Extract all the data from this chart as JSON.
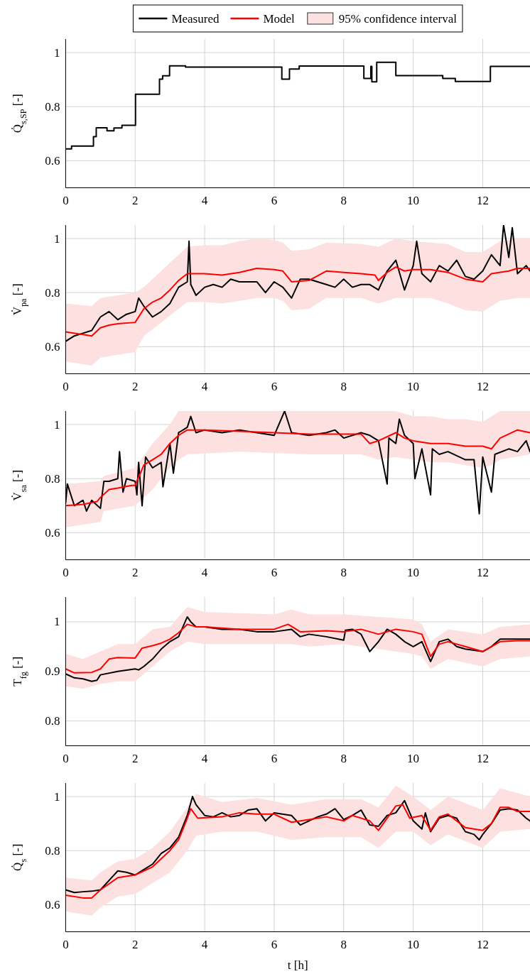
{
  "chart_data": [
    {
      "type": "step",
      "ylabel": "Q̇$_{s,SP}$ [-]",
      "xlim": [
        0,
        13.36
      ],
      "xticks": [
        0,
        2,
        4,
        6,
        8,
        10,
        12
      ],
      "ylim": [
        0.5,
        1.05
      ],
      "yticks": [
        0.6,
        0.8,
        1
      ],
      "grid": true,
      "series": [
        {
          "color": "#000000",
          "x": [
            0,
            0.17,
            0.8,
            0.88,
            1.19,
            1.39,
            1.62,
            2.01,
            2.7,
            2.79,
            2.99,
            3.45,
            6.22,
            6.44,
            6.72,
            8.58,
            8.78,
            8.81,
            8.95,
            9.5,
            10.85,
            11.21,
            12.22,
            13.36
          ],
          "values": [
            0.644,
            0.654,
            0.689,
            0.722,
            0.711,
            0.721,
            0.731,
            0.846,
            0.902,
            0.914,
            0.951,
            0.946,
            0.902,
            0.939,
            0.95,
            0.904,
            0.949,
            0.892,
            0.964,
            0.915,
            0.904,
            0.893,
            0.949,
            0.949
          ]
        }
      ]
    },
    {
      "type": "line",
      "ylabel": "V̇$_{pa}$ [-]",
      "xlim": [
        0,
        13.36
      ],
      "xticks": [
        0,
        2,
        4,
        6,
        8,
        10,
        12
      ],
      "ylim": [
        0.5,
        1.05
      ],
      "yticks": [
        0.6,
        0.8,
        1
      ],
      "grid": true,
      "legend": "top",
      "series": [
        {
          "type": "area",
          "name": "95% confidence interval",
          "color": "#fde0e0",
          "x": [
            0,
            0.75,
            1,
            1.5,
            2,
            2.25,
            2.5,
            2.75,
            3,
            3.25,
            3.5,
            4,
            4.5,
            5,
            5.5,
            6,
            6.25,
            6.5,
            7,
            7.5,
            8.5,
            9,
            9.5,
            10,
            10.5,
            11,
            11.5,
            12,
            12.5,
            13,
            13.36
          ],
          "values": [
            null,
            null,
            null,
            null,
            null,
            null,
            null,
            null,
            null,
            null,
            null,
            null,
            null,
            null,
            null,
            null,
            null,
            null,
            null,
            null,
            null,
            null,
            null,
            null,
            null,
            null,
            null,
            null,
            null,
            null,
            null
          ],
          "lower": [
            0.545,
            0.53,
            0.56,
            0.57,
            0.58,
            0.64,
            0.665,
            0.69,
            0.715,
            0.74,
            0.765,
            0.765,
            0.76,
            0.77,
            0.78,
            0.78,
            0.77,
            0.735,
            0.74,
            0.78,
            0.78,
            0.76,
            0.78,
            0.78,
            0.78,
            0.76,
            0.735,
            0.73,
            0.77,
            0.78,
            0.78
          ],
          "upper": [
            0.76,
            0.75,
            0.78,
            0.79,
            0.8,
            0.82,
            0.85,
            0.88,
            0.91,
            0.94,
            0.97,
            0.975,
            0.975,
            0.99,
            1.0,
            0.995,
            0.985,
            0.955,
            0.96,
            0.985,
            0.98,
            0.97,
            1.0,
            0.99,
            0.985,
            0.98,
            0.95,
            0.95,
            0.99,
            1.0,
            1.0
          ]
        },
        {
          "name": "Measured",
          "color": "#000000",
          "x": [
            0,
            0.25,
            0.5,
            0.75,
            1,
            1.25,
            1.5,
            1.75,
            2,
            2.1,
            2.25,
            2.5,
            2.75,
            3,
            3.25,
            3.5,
            3.55,
            3.6,
            3.75,
            4,
            4.25,
            4.5,
            4.75,
            5,
            5.25,
            5.5,
            5.75,
            6,
            6.25,
            6.5,
            6.75,
            7,
            7.25,
            7.5,
            7.75,
            8,
            8.25,
            8.5,
            8.75,
            9,
            9.25,
            9.5,
            9.75,
            10,
            10.1,
            10.25,
            10.5,
            10.75,
            11,
            11.25,
            11.5,
            11.75,
            12,
            12.25,
            12.5,
            12.6,
            12.75,
            12.85,
            13,
            13.25,
            13.36
          ],
          "values": [
            0.62,
            0.64,
            0.65,
            0.66,
            0.71,
            0.73,
            0.7,
            0.72,
            0.73,
            0.78,
            0.75,
            0.71,
            0.73,
            0.76,
            0.82,
            0.84,
            0.99,
            0.83,
            0.79,
            0.82,
            0.83,
            0.82,
            0.85,
            0.84,
            0.84,
            0.84,
            0.8,
            0.84,
            0.82,
            0.78,
            0.85,
            0.85,
            0.84,
            0.83,
            0.82,
            0.85,
            0.82,
            0.83,
            0.83,
            0.81,
            0.88,
            0.92,
            0.81,
            0.9,
            0.99,
            0.87,
            0.84,
            0.9,
            0.88,
            0.92,
            0.86,
            0.85,
            0.88,
            0.94,
            0.9,
            1.05,
            0.93,
            1.04,
            0.87,
            0.9,
            0.88
          ]
        },
        {
          "name": "Model",
          "color": "#ff0000",
          "x": [
            0,
            0.5,
            0.75,
            1,
            1.25,
            1.5,
            2,
            2.25,
            2.5,
            2.75,
            3,
            3.25,
            3.5,
            4,
            4.5,
            5,
            5.5,
            6,
            6.25,
            6.5,
            7,
            7.5,
            8,
            8.5,
            8.9,
            9,
            9.25,
            9.5,
            9.75,
            10,
            10.5,
            11,
            11.5,
            12,
            12.25,
            12.75,
            13,
            13.36
          ],
          "values": [
            0.655,
            0.645,
            0.64,
            0.67,
            0.68,
            0.685,
            0.69,
            0.74,
            0.765,
            0.78,
            0.81,
            0.845,
            0.87,
            0.87,
            0.865,
            0.875,
            0.89,
            0.885,
            0.88,
            0.84,
            0.845,
            0.88,
            0.875,
            0.87,
            0.865,
            0.845,
            0.875,
            0.895,
            0.88,
            0.885,
            0.885,
            0.875,
            0.85,
            0.84,
            0.87,
            0.88,
            0.89,
            0.89
          ]
        }
      ]
    },
    {
      "type": "line",
      "ylabel": "V̇$_{sa}$ [-]",
      "xlim": [
        0,
        13.36
      ],
      "xticks": [
        0,
        2,
        4,
        6,
        8,
        10,
        12
      ],
      "ylim": [
        0.5,
        1.05
      ],
      "yticks": [
        0.6,
        0.8,
        1
      ],
      "grid": true,
      "series": [
        {
          "type": "area",
          "color": "#fde0e0",
          "x": [
            0,
            1,
            1.1,
            2,
            2.5,
            3,
            3.25,
            3.5,
            5,
            7,
            8.5,
            9,
            9.5,
            10,
            10.5,
            11,
            11.5,
            12,
            12.25,
            12.5,
            13.36
          ],
          "values": [
            null,
            null,
            null,
            null,
            null,
            null,
            null,
            null,
            null,
            null,
            null,
            null,
            null,
            null,
            null,
            null,
            null,
            null,
            null,
            null,
            null
          ],
          "lower": [
            0.62,
            0.64,
            0.68,
            0.7,
            0.76,
            0.84,
            0.87,
            0.89,
            0.9,
            0.89,
            0.89,
            0.87,
            0.88,
            0.87,
            0.86,
            0.86,
            0.85,
            0.84,
            0.85,
            0.87,
            0.89
          ],
          "upper": [
            0.78,
            0.79,
            0.81,
            0.84,
            0.93,
            1.0,
            1.05,
            1.05,
            1.05,
            1.05,
            1.05,
            1.05,
            1.05,
            1.03,
            1.03,
            1.02,
            1.02,
            1.01,
            1.03,
            1.05,
            1.05
          ]
        },
        {
          "color": "#000000",
          "x": [
            0,
            0.05,
            0.25,
            0.5,
            0.6,
            0.75,
            1,
            1.1,
            1.25,
            1.5,
            1.55,
            1.65,
            1.75,
            2,
            2.05,
            2.1,
            2.2,
            2.3,
            2.5,
            2.75,
            2.8,
            3,
            3.1,
            3.25,
            3.5,
            3.6,
            3.75,
            4,
            4.5,
            5,
            5.5,
            6,
            6.3,
            6.5,
            7,
            7.5,
            7.75,
            8,
            8.5,
            8.75,
            9,
            9.25,
            9.3,
            9.5,
            9.6,
            9.75,
            10,
            10.05,
            10.25,
            10.5,
            10.55,
            10.75,
            11,
            11.5,
            11.75,
            11.9,
            12,
            12.25,
            12.35,
            12.75,
            13,
            13.25,
            13.36
          ],
          "values": [
            0.71,
            0.78,
            0.7,
            0.72,
            0.68,
            0.72,
            0.69,
            0.79,
            0.79,
            0.8,
            0.9,
            0.75,
            0.8,
            0.79,
            0.74,
            0.86,
            0.7,
            0.88,
            0.84,
            0.86,
            0.77,
            0.93,
            0.82,
            0.97,
            0.99,
            1.03,
            0.97,
            0.98,
            0.97,
            0.98,
            0.97,
            0.96,
            1.05,
            0.97,
            0.96,
            0.97,
            0.98,
            0.95,
            0.97,
            0.96,
            0.94,
            0.78,
            0.95,
            0.93,
            1.02,
            0.96,
            0.93,
            0.8,
            0.91,
            0.74,
            0.91,
            0.89,
            0.9,
            0.87,
            0.87,
            0.67,
            0.88,
            0.75,
            0.89,
            0.91,
            0.9,
            0.94,
            0.9
          ]
        },
        {
          "color": "#ff0000",
          "x": [
            0,
            0.5,
            0.9,
            1,
            1.25,
            1.5,
            1.9,
            2,
            2.25,
            2.5,
            2.75,
            3,
            3.25,
            3.5,
            4,
            5,
            6,
            7,
            8,
            8.5,
            8.75,
            9,
            9.5,
            9.75,
            10,
            10.5,
            11,
            11.5,
            12,
            12.25,
            12.5,
            13,
            13.36
          ],
          "values": [
            0.7,
            0.705,
            0.715,
            0.73,
            0.76,
            0.765,
            0.775,
            0.775,
            0.85,
            0.87,
            0.89,
            0.93,
            0.96,
            0.98,
            0.98,
            0.975,
            0.97,
            0.965,
            0.965,
            0.965,
            0.93,
            0.94,
            0.97,
            0.95,
            0.94,
            0.93,
            0.93,
            0.92,
            0.92,
            0.91,
            0.95,
            0.98,
            0.97
          ]
        }
      ]
    },
    {
      "type": "line",
      "ylabel": "T$_{fg}$ [-]",
      "xlim": [
        0,
        13.36
      ],
      "xticks": [
        0,
        2,
        4,
        6,
        8,
        10,
        12
      ],
      "ylim": [
        0.75,
        1.05
      ],
      "yticks": [
        0.8,
        0.9,
        1
      ],
      "grid": true,
      "series": [
        {
          "type": "area",
          "color": "#fde0e0",
          "x": [
            0,
            0.5,
            1,
            1.5,
            2,
            2.5,
            3,
            3.5,
            4,
            6,
            6.5,
            7,
            8,
            9,
            10,
            10.25,
            10.5,
            11,
            12,
            12.5,
            13.36
          ],
          "values": [
            null,
            null,
            null,
            null,
            null,
            null,
            null,
            null,
            null,
            null,
            null,
            null,
            null,
            null,
            null,
            null,
            null,
            null,
            null,
            null,
            null
          ],
          "lower": [
            0.87,
            0.865,
            0.875,
            0.88,
            0.88,
            0.91,
            0.94,
            0.96,
            0.955,
            0.955,
            0.955,
            0.95,
            0.955,
            0.945,
            0.935,
            0.93,
            0.905,
            0.925,
            0.91,
            0.925,
            0.93
          ],
          "upper": [
            0.935,
            0.925,
            0.94,
            0.955,
            0.955,
            0.985,
            0.99,
            1.03,
            1.02,
            1.015,
            1.025,
            1.015,
            1.015,
            1.01,
            1.005,
            0.995,
            0.96,
            0.985,
            0.975,
            0.99,
            0.995
          ]
        },
        {
          "color": "#000000",
          "x": [
            0,
            0.25,
            0.5,
            0.75,
            0.9,
            1,
            1.5,
            2,
            2.1,
            2.25,
            2.5,
            2.75,
            3,
            3.25,
            3.5,
            3.6,
            3.75,
            4,
            4.5,
            5,
            5.5,
            6,
            6.5,
            6.75,
            7,
            7.5,
            8,
            8.05,
            8.25,
            8.5,
            8.75,
            9,
            9.25,
            9.5,
            9.75,
            10,
            10.25,
            10.5,
            10.75,
            11,
            11.25,
            11.5,
            12,
            12.25,
            12.5,
            13,
            13.36
          ],
          "values": [
            0.895,
            0.887,
            0.885,
            0.88,
            0.882,
            0.893,
            0.9,
            0.905,
            0.903,
            0.91,
            0.925,
            0.945,
            0.96,
            0.97,
            1.01,
            1.0,
            0.99,
            0.99,
            0.985,
            0.985,
            0.98,
            0.98,
            0.985,
            0.97,
            0.975,
            0.97,
            0.963,
            0.983,
            0.985,
            0.975,
            0.94,
            0.96,
            0.985,
            0.975,
            0.96,
            0.95,
            0.96,
            0.92,
            0.96,
            0.965,
            0.95,
            0.945,
            0.94,
            0.95,
            0.965,
            0.965,
            0.965
          ]
        },
        {
          "color": "#ff0000",
          "x": [
            0,
            0.25,
            0.75,
            1,
            1.25,
            1.5,
            2,
            2.2,
            2.5,
            2.75,
            3,
            3.25,
            3.5,
            3.75,
            4,
            5,
            6,
            6.4,
            6.75,
            7.5,
            8,
            8.5,
            9,
            9.5,
            10,
            10.25,
            10.5,
            10.75,
            11,
            11.5,
            12,
            12.5,
            13,
            13.36
          ],
          "values": [
            0.905,
            0.897,
            0.898,
            0.905,
            0.925,
            0.928,
            0.927,
            0.947,
            0.952,
            0.957,
            0.965,
            0.978,
            0.995,
            0.99,
            0.99,
            0.985,
            0.985,
            0.995,
            0.98,
            0.982,
            0.98,
            0.985,
            0.975,
            0.985,
            0.98,
            0.975,
            0.93,
            0.955,
            0.96,
            0.95,
            0.94,
            0.96,
            0.962,
            0.962
          ]
        }
      ]
    },
    {
      "type": "line",
      "ylabel": "Q̇$_{s}$ [-]",
      "xlabel": "t [h]",
      "xlim": [
        0,
        13.36
      ],
      "xticks": [
        0,
        2,
        4,
        6,
        8,
        10,
        12
      ],
      "ylim": [
        0.5,
        1.05
      ],
      "yticks": [
        0.6,
        0.8,
        1
      ],
      "grid": true,
      "series": [
        {
          "type": "area",
          "color": "#fde0e0",
          "x": [
            0,
            0.75,
            1,
            1.5,
            2,
            2.5,
            3,
            3.5,
            3.75,
            4.5,
            5.5,
            6.5,
            7.5,
            8.5,
            9,
            9.5,
            10,
            10.5,
            11,
            12,
            12.5,
            13.36
          ],
          "values": [
            null,
            null,
            null,
            null,
            null,
            null,
            null,
            null,
            null,
            null,
            null,
            null,
            null,
            null,
            null,
            null,
            null,
            null,
            null,
            null,
            null,
            null
          ],
          "lower": [
            0.575,
            0.56,
            0.59,
            0.63,
            0.64,
            0.68,
            0.72,
            0.8,
            0.855,
            0.87,
            0.87,
            0.84,
            0.85,
            0.85,
            0.81,
            0.87,
            0.87,
            0.82,
            0.86,
            0.81,
            0.87,
            0.88
          ],
          "upper": [
            0.7,
            0.69,
            0.72,
            0.76,
            0.77,
            0.81,
            0.87,
            0.96,
            1.01,
            0.98,
            0.995,
            0.97,
            0.99,
            0.99,
            0.96,
            1.04,
            1.0,
            0.95,
            1.0,
            0.95,
            1.03,
            1.0
          ]
        },
        {
          "color": "#000000",
          "x": [
            0,
            0.25,
            0.5,
            0.75,
            1,
            1.25,
            1.5,
            1.75,
            2,
            2.25,
            2.5,
            2.75,
            3,
            3.25,
            3.5,
            3.65,
            3.75,
            4,
            4.25,
            4.5,
            4.75,
            5,
            5.25,
            5.5,
            5.75,
            6,
            6.5,
            6.75,
            7,
            7.25,
            7.5,
            7.75,
            8,
            8.25,
            8.5,
            8.75,
            9,
            9.25,
            9.5,
            9.75,
            10,
            10.25,
            10.35,
            10.5,
            10.75,
            11,
            11.25,
            11.5,
            11.75,
            11.9,
            12,
            12.25,
            12.5,
            12.75,
            13,
            13.25,
            13.36
          ],
          "values": [
            0.655,
            0.645,
            0.648,
            0.65,
            0.655,
            0.69,
            0.725,
            0.72,
            0.71,
            0.73,
            0.75,
            0.79,
            0.81,
            0.85,
            0.93,
            1.0,
            0.97,
            0.93,
            0.925,
            0.94,
            0.925,
            0.93,
            0.95,
            0.955,
            0.91,
            0.94,
            0.93,
            0.895,
            0.91,
            0.925,
            0.935,
            0.955,
            0.915,
            0.93,
            0.95,
            0.895,
            0.89,
            0.93,
            0.94,
            0.985,
            0.91,
            0.88,
            0.94,
            0.87,
            0.92,
            0.93,
            0.92,
            0.87,
            0.86,
            0.84,
            0.86,
            0.9,
            0.95,
            0.955,
            0.95,
            0.92,
            0.91
          ]
        },
        {
          "color": "#ff0000",
          "x": [
            0,
            0.5,
            0.75,
            1,
            1.5,
            2,
            2.5,
            3,
            3.25,
            3.5,
            3.6,
            3.8,
            4.5,
            5,
            5.5,
            6,
            6.5,
            7,
            7.5,
            8,
            8.25,
            8.75,
            9,
            9.5,
            9.7,
            9.9,
            10.25,
            10.5,
            10.75,
            11,
            11.5,
            12,
            12.25,
            12.5,
            12.75,
            13,
            13.36
          ],
          "values": [
            0.635,
            0.625,
            0.625,
            0.655,
            0.7,
            0.71,
            0.74,
            0.8,
            0.84,
            0.92,
            0.955,
            0.92,
            0.925,
            0.94,
            0.935,
            0.935,
            0.905,
            0.915,
            0.925,
            0.91,
            0.93,
            0.91,
            0.875,
            0.965,
            0.97,
            0.92,
            0.93,
            0.875,
            0.925,
            0.935,
            0.885,
            0.875,
            0.9,
            0.96,
            0.96,
            0.945,
            0.945
          ]
        }
      ]
    }
  ]
}
